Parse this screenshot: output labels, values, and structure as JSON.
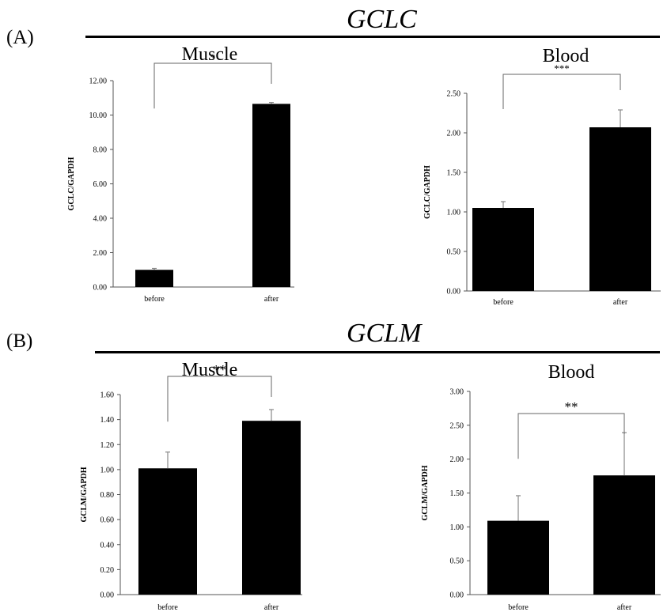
{
  "figure": {
    "panels": [
      {
        "letter": "(A)",
        "gene": "GCLC"
      },
      {
        "letter": "(B)",
        "gene": "GCLM"
      }
    ]
  },
  "chart_data": [
    {
      "type": "bar",
      "title": "Muscle",
      "ylabel": "GCLC/GAPDH",
      "xlabel": "",
      "categories": [
        "before",
        "after"
      ],
      "values": [
        1.0,
        10.65
      ],
      "errors": [
        0.08,
        0.08
      ],
      "ylim": [
        0,
        12
      ],
      "yticks": [
        "0.00",
        "2.00",
        "4.00",
        "6.00",
        "8.00",
        "10.00",
        "12.00"
      ],
      "significance": "*",
      "grid": false,
      "color": "#000000"
    },
    {
      "type": "bar",
      "title": "Blood",
      "ylabel": "GCLC/GAPDH",
      "xlabel": "",
      "categories": [
        "before",
        "after"
      ],
      "values": [
        1.05,
        2.07
      ],
      "errors": [
        0.08,
        0.22
      ],
      "ylim": [
        0,
        2.5
      ],
      "yticks": [
        "0.00",
        "0.50",
        "1.00",
        "1.50",
        "2.00",
        "2.50"
      ],
      "significance": "***",
      "grid": false,
      "color": "#000000"
    },
    {
      "type": "bar",
      "title": "Muscle",
      "ylabel": "GCLM/GAPDH",
      "xlabel": "",
      "categories": [
        "before",
        "after"
      ],
      "values": [
        1.01,
        1.39
      ],
      "errors": [
        0.13,
        0.09
      ],
      "ylim": [
        0,
        1.6
      ],
      "yticks": [
        "0.00",
        "0.20",
        "0.40",
        "0.60",
        "0.80",
        "1.00",
        "1.20",
        "1.40",
        "1.60"
      ],
      "significance": "**",
      "grid": false,
      "color": "#000000"
    },
    {
      "type": "bar",
      "title": "Blood",
      "ylabel": "GCLM/GAPDH",
      "xlabel": "",
      "categories": [
        "before",
        "after"
      ],
      "values": [
        1.09,
        1.76
      ],
      "errors": [
        0.37,
        0.63
      ],
      "ylim": [
        0,
        3.0
      ],
      "yticks": [
        "0.00",
        "0.50",
        "1.00",
        "1.50",
        "2.00",
        "2.50",
        "3.00"
      ],
      "significance": "**",
      "grid": false,
      "color": "#000000"
    }
  ]
}
